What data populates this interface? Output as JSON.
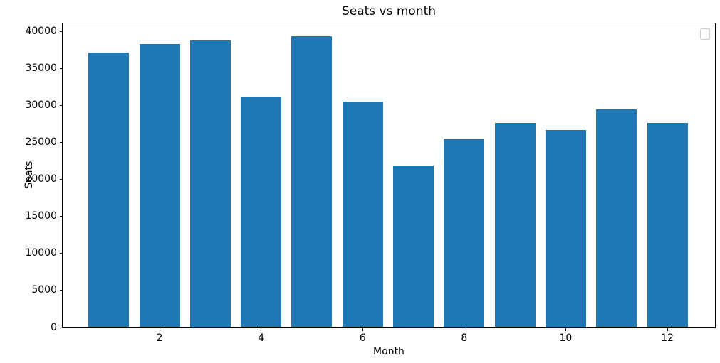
{
  "chart_data": {
    "type": "bar",
    "title": "Seats vs month",
    "xlabel": "Month",
    "ylabel": "Seats",
    "categories": [
      1,
      2,
      3,
      4,
      5,
      6,
      7,
      8,
      9,
      10,
      11,
      12
    ],
    "values": [
      37100,
      38300,
      38800,
      31200,
      39300,
      30500,
      21900,
      25400,
      27600,
      26700,
      29400,
      27600
    ],
    "bar_color": "#1f77b4",
    "x_ticks": [
      2,
      4,
      6,
      8,
      10,
      12
    ],
    "y_ticks": [
      0,
      5000,
      10000,
      15000,
      20000,
      25000,
      30000,
      35000,
      40000
    ],
    "xlim": [
      0.09,
      12.94
    ],
    "ylim": [
      0,
      41100
    ],
    "grid": false,
    "legend": {
      "visible": true,
      "entries": [],
      "position": "upper right"
    }
  }
}
